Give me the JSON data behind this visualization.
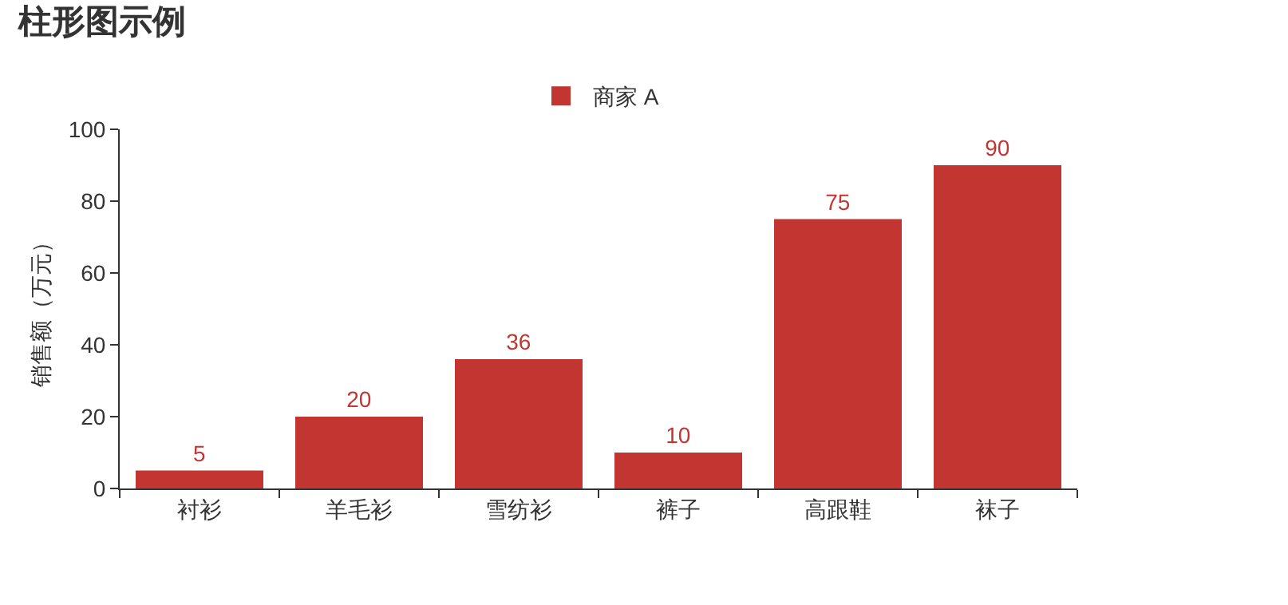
{
  "chart_data": {
    "type": "bar",
    "title": "柱形图示例",
    "ylabel": "销售额（万元）",
    "categories": [
      "衬衫",
      "羊毛衫",
      "雪纺衫",
      "裤子",
      "高跟鞋",
      "袜子"
    ],
    "series": [
      {
        "name": "商家 A",
        "color": "#c23531",
        "values": [
          5,
          20,
          36,
          10,
          75,
          90
        ]
      }
    ],
    "ylim": [
      0,
      100
    ],
    "yticks": [
      0,
      20,
      40,
      60,
      80,
      100
    ],
    "grid": false,
    "legend": "top",
    "data_labels": true
  }
}
